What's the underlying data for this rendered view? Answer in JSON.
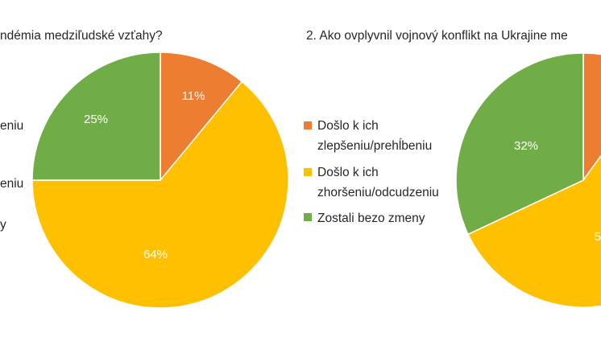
{
  "colors": {
    "orange": "#ED7D31",
    "yellow": "#FFC000",
    "green": "#70AD47"
  },
  "chart_data": [
    {
      "type": "pie",
      "title": "ndémia medziľudské vzťahy?",
      "legend": [
        "eniu",
        "eniu",
        "y"
      ],
      "slices": [
        {
          "value": 11,
          "label": "11%",
          "color": "#ED7D31"
        },
        {
          "value": 64,
          "label": "64%",
          "color": "#FFC000"
        },
        {
          "value": 25,
          "label": "25%",
          "color": "#70AD47"
        }
      ]
    },
    {
      "type": "pie",
      "title": "2. Ako ovplyvnil vojnový konflikt na Ukrajine me",
      "legend_placement": "left",
      "legend": [
        {
          "lines": [
            "Došlo k ich",
            "zlepšeniu/prehĺbeniu"
          ],
          "color": "#ED7D31"
        },
        {
          "lines": [
            "Došlo k ich",
            "zhoršeniu/odcudzeniu"
          ],
          "color": "#FFC000"
        },
        {
          "lines": [
            "Zostali bezo zmeny"
          ],
          "color": "#70AD47"
        }
      ],
      "slices": [
        {
          "value": 10,
          "label": "",
          "color": "#ED7D31"
        },
        {
          "value": 58,
          "label": "5",
          "color": "#FFC000"
        },
        {
          "value": 32,
          "label": "32%",
          "color": "#70AD47"
        }
      ]
    }
  ]
}
